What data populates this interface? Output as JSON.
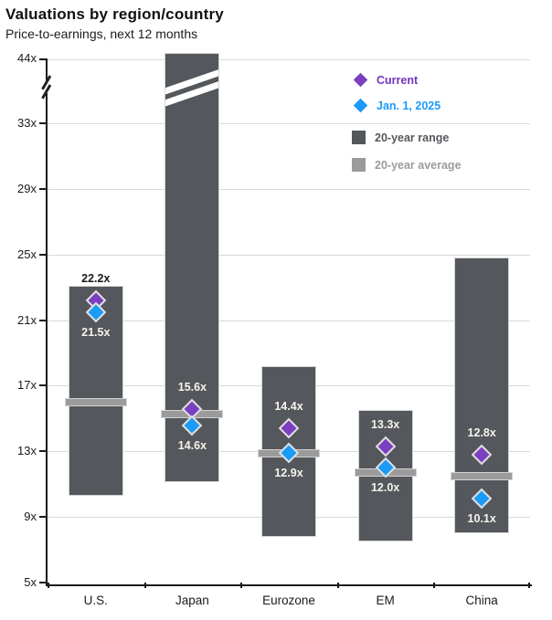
{
  "header": {
    "title": "Valuations by region/country",
    "subtitle": "Price-to-earnings, next 12 months"
  },
  "legend": {
    "current": {
      "label": "Current"
    },
    "jan1": {
      "label": "Jan. 1, 2025"
    },
    "range": {
      "label": "20-year range"
    },
    "average": {
      "label": "20-year average"
    }
  },
  "colors": {
    "current": "#7b3fc0",
    "jan1": "#1b9af7",
    "range_bar": "#54575b",
    "average_band": "#9b9b9b",
    "current_text": "#7433bd",
    "jan1_text": "#1b9af7",
    "range_text": "#54575b",
    "average_text": "#9b9b9b",
    "label_on_bar": "#f7f3ec",
    "label_off_bar": "#1a1a1a",
    "gridline": "#d9d9d9",
    "axis": "#1a1a1a"
  },
  "chart_data": {
    "type": "bar",
    "subtype": "range-bar-with-markers",
    "title": "Valuations by region/country",
    "subtitle": "Price-to-earnings, next 12 months",
    "unit_suffix": "x",
    "ylim": [
      5,
      33
    ],
    "y_ticks": [
      5,
      9,
      13,
      17,
      21,
      25,
      29,
      33
    ],
    "y_break_top_label": "44x",
    "y_axis_broken_above": 33,
    "grid": "horizontal",
    "legend_position": "top-right",
    "categories": [
      "U.S.",
      "Japan",
      "Eurozone",
      "EM",
      "China"
    ],
    "series_meaning": {
      "range": "20-year range (low/high)",
      "average": "20-year average",
      "current": "Current",
      "jan1": "Jan. 1, 2025"
    },
    "regions": [
      {
        "label": "U.S.",
        "range_low": 10.3,
        "range_high": 23.1,
        "range_clipped": false,
        "average": 16.0,
        "current": 22.2,
        "jan1": 21.5,
        "current_label": "22.2x",
        "jan1_label": "21.5x"
      },
      {
        "label": "Japan",
        "range_low": 11.1,
        "range_high": 44.0,
        "range_clipped": true,
        "average": 15.3,
        "current": 15.6,
        "jan1": 14.6,
        "current_label": "15.6x",
        "jan1_label": "14.6x"
      },
      {
        "label": "Eurozone",
        "range_low": 7.8,
        "range_high": 18.2,
        "range_clipped": false,
        "average": 12.9,
        "current": 14.4,
        "jan1": 12.9,
        "current_label": "14.4x",
        "jan1_label": "12.9x"
      },
      {
        "label": "EM",
        "range_low": 7.5,
        "range_high": 15.5,
        "range_clipped": false,
        "average": 11.7,
        "current": 13.3,
        "jan1": 12.0,
        "current_label": "13.3x",
        "jan1_label": "12.0x"
      },
      {
        "label": "China",
        "range_low": 8.0,
        "range_high": 24.8,
        "range_clipped": false,
        "average": 11.5,
        "current": 12.8,
        "jan1": 10.1,
        "current_label": "12.8x",
        "jan1_label": "10.1x"
      }
    ]
  }
}
